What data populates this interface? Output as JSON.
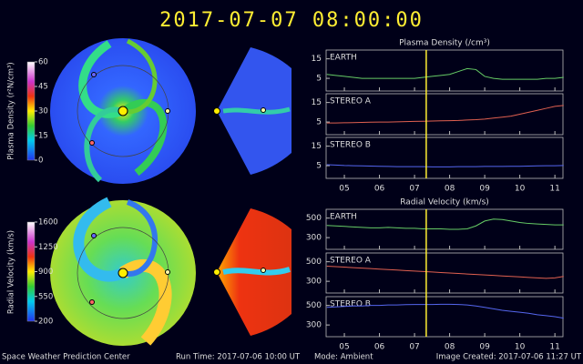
{
  "header": {
    "title": "2017-07-07  08:00:00"
  },
  "colorbars": [
    {
      "label": "Plasma Density (r²N/cm³)",
      "clim": [
        0,
        60
      ],
      "ticks": [
        0,
        15,
        30,
        45,
        60
      ]
    },
    {
      "label": "Radial Velocity (km/s)",
      "clim": [
        200,
        1600
      ],
      "ticks": [
        200,
        550,
        900,
        1250,
        1600
      ]
    }
  ],
  "chart_data": [
    {
      "type": "line",
      "title": "Plasma Density (/cm³)",
      "x": [
        4.5,
        4.75,
        5,
        5.25,
        5.5,
        5.75,
        6,
        6.25,
        6.5,
        6.75,
        7,
        7.25,
        7.5,
        7.75,
        8,
        8.25,
        8.5,
        8.75,
        9,
        9.25,
        9.5,
        9.75,
        10,
        10.25,
        10.5,
        10.75,
        11,
        11.25
      ],
      "xlim": [
        4.48,
        11.23
      ],
      "xticks": [
        {
          "value": 5,
          "label": "05"
        },
        {
          "value": 6,
          "label": "06"
        },
        {
          "value": 7,
          "label": "07"
        },
        {
          "value": 8,
          "label": "08"
        },
        {
          "value": 9,
          "label": "09"
        },
        {
          "value": 10,
          "label": "10"
        },
        {
          "value": 11,
          "label": "11"
        }
      ],
      "ylim": [
        -1.5,
        19.5
      ],
      "yticks": [
        5,
        15
      ],
      "current_time": 7.333,
      "series": [
        {
          "name": "EARTH",
          "color": "#66cc66",
          "values": [
            7,
            6.5,
            6,
            5.5,
            5,
            5,
            5,
            5,
            5,
            5,
            5,
            5.5,
            6,
            6.5,
            7,
            8.5,
            10,
            9.5,
            6,
            5,
            4.5,
            4.5,
            4.5,
            4.5,
            4.5,
            5,
            5,
            5.5
          ]
        },
        {
          "name": "STEREO A",
          "color": "#e06050",
          "values": [
            4.5,
            4.5,
            4.6,
            4.7,
            4.8,
            4.9,
            5,
            5,
            5.1,
            5.2,
            5.3,
            5.4,
            5.5,
            5.6,
            5.7,
            5.8,
            6,
            6.2,
            6.5,
            7,
            7.5,
            8,
            9,
            10,
            11,
            12,
            13,
            13.5
          ]
        },
        {
          "name": "STEREO B",
          "color": "#5566ee",
          "values": [
            5.5,
            5.3,
            5.1,
            5,
            4.9,
            4.8,
            4.7,
            4.6,
            4.5,
            4.5,
            4.5,
            4.5,
            4.4,
            4.4,
            4.4,
            4.5,
            4.5,
            4.5,
            4.6,
            4.6,
            4.6,
            4.7,
            4.7,
            4.8,
            4.9,
            5,
            5,
            5.1
          ]
        }
      ]
    },
    {
      "type": "line",
      "title": "Radial Velocity (km/s)",
      "x": [
        4.5,
        4.75,
        5,
        5.25,
        5.5,
        5.75,
        6,
        6.25,
        6.5,
        6.75,
        7,
        7.25,
        7.5,
        7.75,
        8,
        8.25,
        8.5,
        8.75,
        9,
        9.25,
        9.5,
        9.75,
        10,
        10.25,
        10.5,
        10.75,
        11,
        11.25
      ],
      "xlim": [
        4.48,
        11.23
      ],
      "xticks": [
        {
          "value": 5,
          "label": "05"
        },
        {
          "value": 6,
          "label": "06"
        },
        {
          "value": 7,
          "label": "07"
        },
        {
          "value": 8,
          "label": "08"
        },
        {
          "value": 9,
          "label": "09"
        },
        {
          "value": 10,
          "label": "10"
        },
        {
          "value": 11,
          "label": "11"
        }
      ],
      "ylim": [
        180,
        590
      ],
      "yticks": [
        300,
        500
      ],
      "current_time": 7.333,
      "series": [
        {
          "name": "EARTH",
          "color": "#66cc66",
          "values": [
            425,
            420,
            415,
            410,
            405,
            400,
            400,
            405,
            400,
            395,
            395,
            390,
            390,
            390,
            385,
            385,
            390,
            420,
            470,
            490,
            485,
            470,
            455,
            445,
            440,
            435,
            430,
            430
          ]
        },
        {
          "name": "STEREO A",
          "color": "#e06050",
          "values": [
            455,
            450,
            445,
            440,
            435,
            430,
            425,
            420,
            415,
            410,
            405,
            400,
            395,
            390,
            385,
            380,
            375,
            370,
            365,
            360,
            355,
            350,
            345,
            340,
            335,
            330,
            335,
            350
          ]
        },
        {
          "name": "STEREO B",
          "color": "#5566ee",
          "values": [
            480,
            485,
            490,
            495,
            495,
            500,
            500,
            505,
            505,
            508,
            510,
            510,
            510,
            512,
            512,
            510,
            505,
            495,
            480,
            465,
            450,
            440,
            430,
            420,
            405,
            395,
            385,
            370
          ]
        }
      ]
    }
  ],
  "footer": {
    "center": "Space Weather Prediction Center",
    "run_time": "Run Time: 2017-07-06 10:00 UT",
    "mode": "Mode: Ambient",
    "created": "Image Created: 2017-07-06 11:27 UT"
  }
}
